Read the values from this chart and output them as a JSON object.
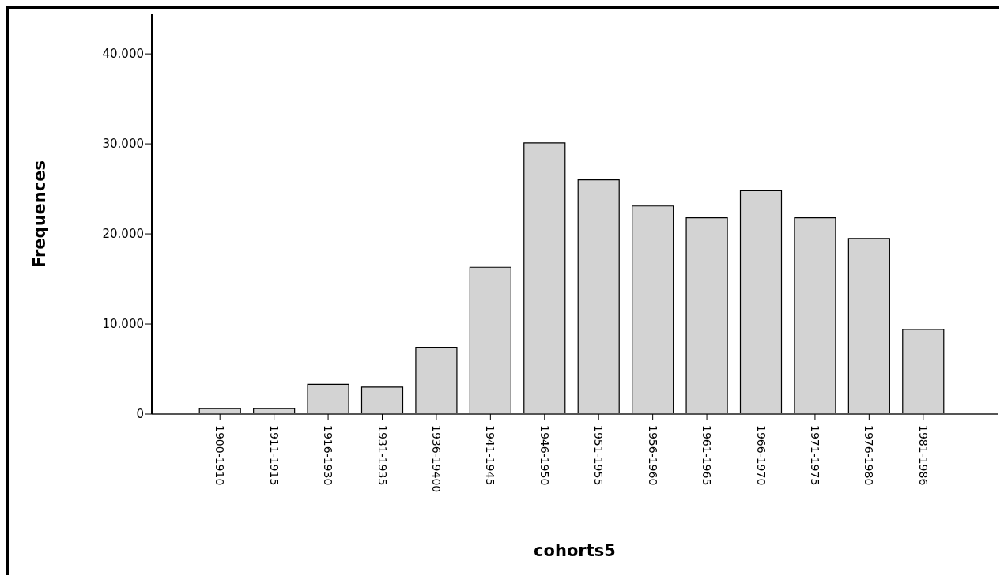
{
  "chart_data": {
    "type": "bar",
    "xlabel": "cohorts5",
    "ylabel": "Frequences",
    "categories": [
      "1900-1910",
      "1911-1915",
      "1916-1930",
      "1931-1935",
      "1936-19400",
      "1941-1945",
      "1946-1950",
      "1951-1955",
      "1956-1960",
      "1961-1965",
      "1966-1970",
      "1971-1975",
      "1976-1980",
      "1981-1986"
    ],
    "values": [
      600,
      600,
      3300,
      3000,
      7400,
      16300,
      30100,
      26000,
      23100,
      21800,
      24800,
      21800,
      19500,
      9400
    ],
    "color": "#d3d3d3",
    "ylim": [
      0,
      44400
    ],
    "yticks": [
      0,
      {
        "value": 10000,
        "label": "10.000"
      },
      {
        "value": 20000,
        "label": "20.000"
      },
      {
        "value": 30000,
        "label": "30.000"
      },
      {
        "value": 40000,
        "label": "40.000"
      }
    ],
    "grid": false,
    "legend": false
  }
}
